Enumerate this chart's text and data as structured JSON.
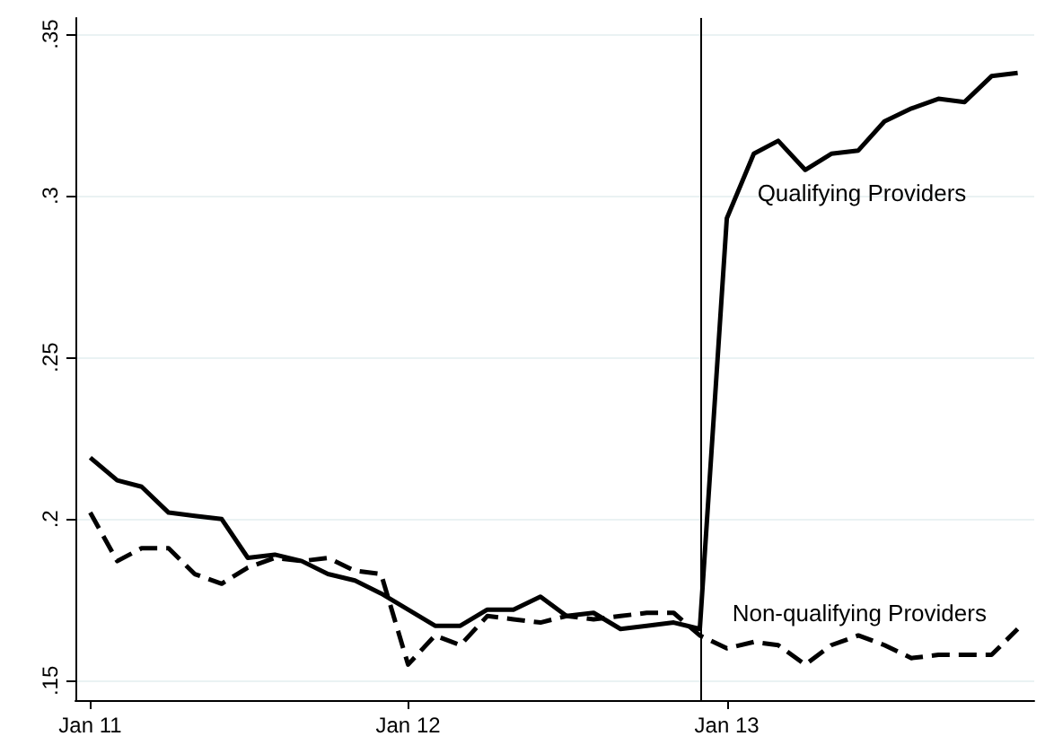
{
  "chart_data": {
    "type": "line",
    "x": [
      "2011-01",
      "2011-02",
      "2011-03",
      "2011-04",
      "2011-05",
      "2011-06",
      "2011-07",
      "2011-08",
      "2011-09",
      "2011-10",
      "2011-11",
      "2011-12",
      "2012-01",
      "2012-02",
      "2012-03",
      "2012-04",
      "2012-05",
      "2012-06",
      "2012-07",
      "2012-08",
      "2012-09",
      "2012-10",
      "2012-11",
      "2012-12",
      "2013-01",
      "2013-02",
      "2013-03",
      "2013-04",
      "2013-05",
      "2013-06",
      "2013-07",
      "2013-08",
      "2013-09",
      "2013-10",
      "2013-11",
      "2013-12"
    ],
    "series": [
      {
        "name": "Qualifying Providers",
        "color": "#000000",
        "line_style": "solid",
        "values": [
          0.219,
          0.212,
          0.21,
          0.202,
          0.201,
          0.2,
          0.188,
          0.189,
          0.187,
          0.183,
          0.181,
          0.177,
          0.172,
          0.167,
          0.167,
          0.172,
          0.172,
          0.176,
          0.17,
          0.171,
          0.166,
          0.167,
          0.168,
          0.166,
          0.293,
          0.313,
          0.317,
          0.308,
          0.313,
          0.314,
          0.323,
          0.327,
          0.33,
          0.329,
          0.337,
          0.338
        ]
      },
      {
        "name": "Non-qualifying Providers",
        "color": "#000000",
        "line_style": "dashed",
        "values": [
          0.202,
          0.187,
          0.191,
          0.191,
          0.183,
          0.18,
          0.185,
          0.188,
          0.187,
          0.188,
          0.184,
          0.183,
          0.155,
          0.164,
          0.161,
          0.17,
          0.169,
          0.168,
          0.17,
          0.169,
          0.17,
          0.171,
          0.171,
          0.164,
          0.16,
          0.162,
          0.161,
          0.155,
          0.161,
          0.164,
          0.161,
          0.157,
          0.158,
          0.158,
          0.158,
          0.166
        ]
      }
    ],
    "xlim": [
      "2010-12-15",
      "2013-12-20"
    ],
    "xticks": [
      {
        "value": "2011-01",
        "label": "Jan 11"
      },
      {
        "value": "2012-01",
        "label": "Jan 12"
      },
      {
        "value": "2013-01",
        "label": "Jan 13"
      }
    ],
    "ylim": [
      0.144,
      0.355
    ],
    "yticks": [
      {
        "value": 0.15,
        "label": ".15"
      },
      {
        "value": 0.2,
        "label": ".2"
      },
      {
        "value": 0.25,
        "label": ".25"
      },
      {
        "value": 0.3,
        "label": ".3"
      },
      {
        "value": 0.35,
        "label": ".35"
      }
    ],
    "ref_lines": [
      {
        "axis": "x",
        "value": "2012-12",
        "color": "#000000"
      }
    ],
    "grid": "y",
    "marker": "none"
  }
}
